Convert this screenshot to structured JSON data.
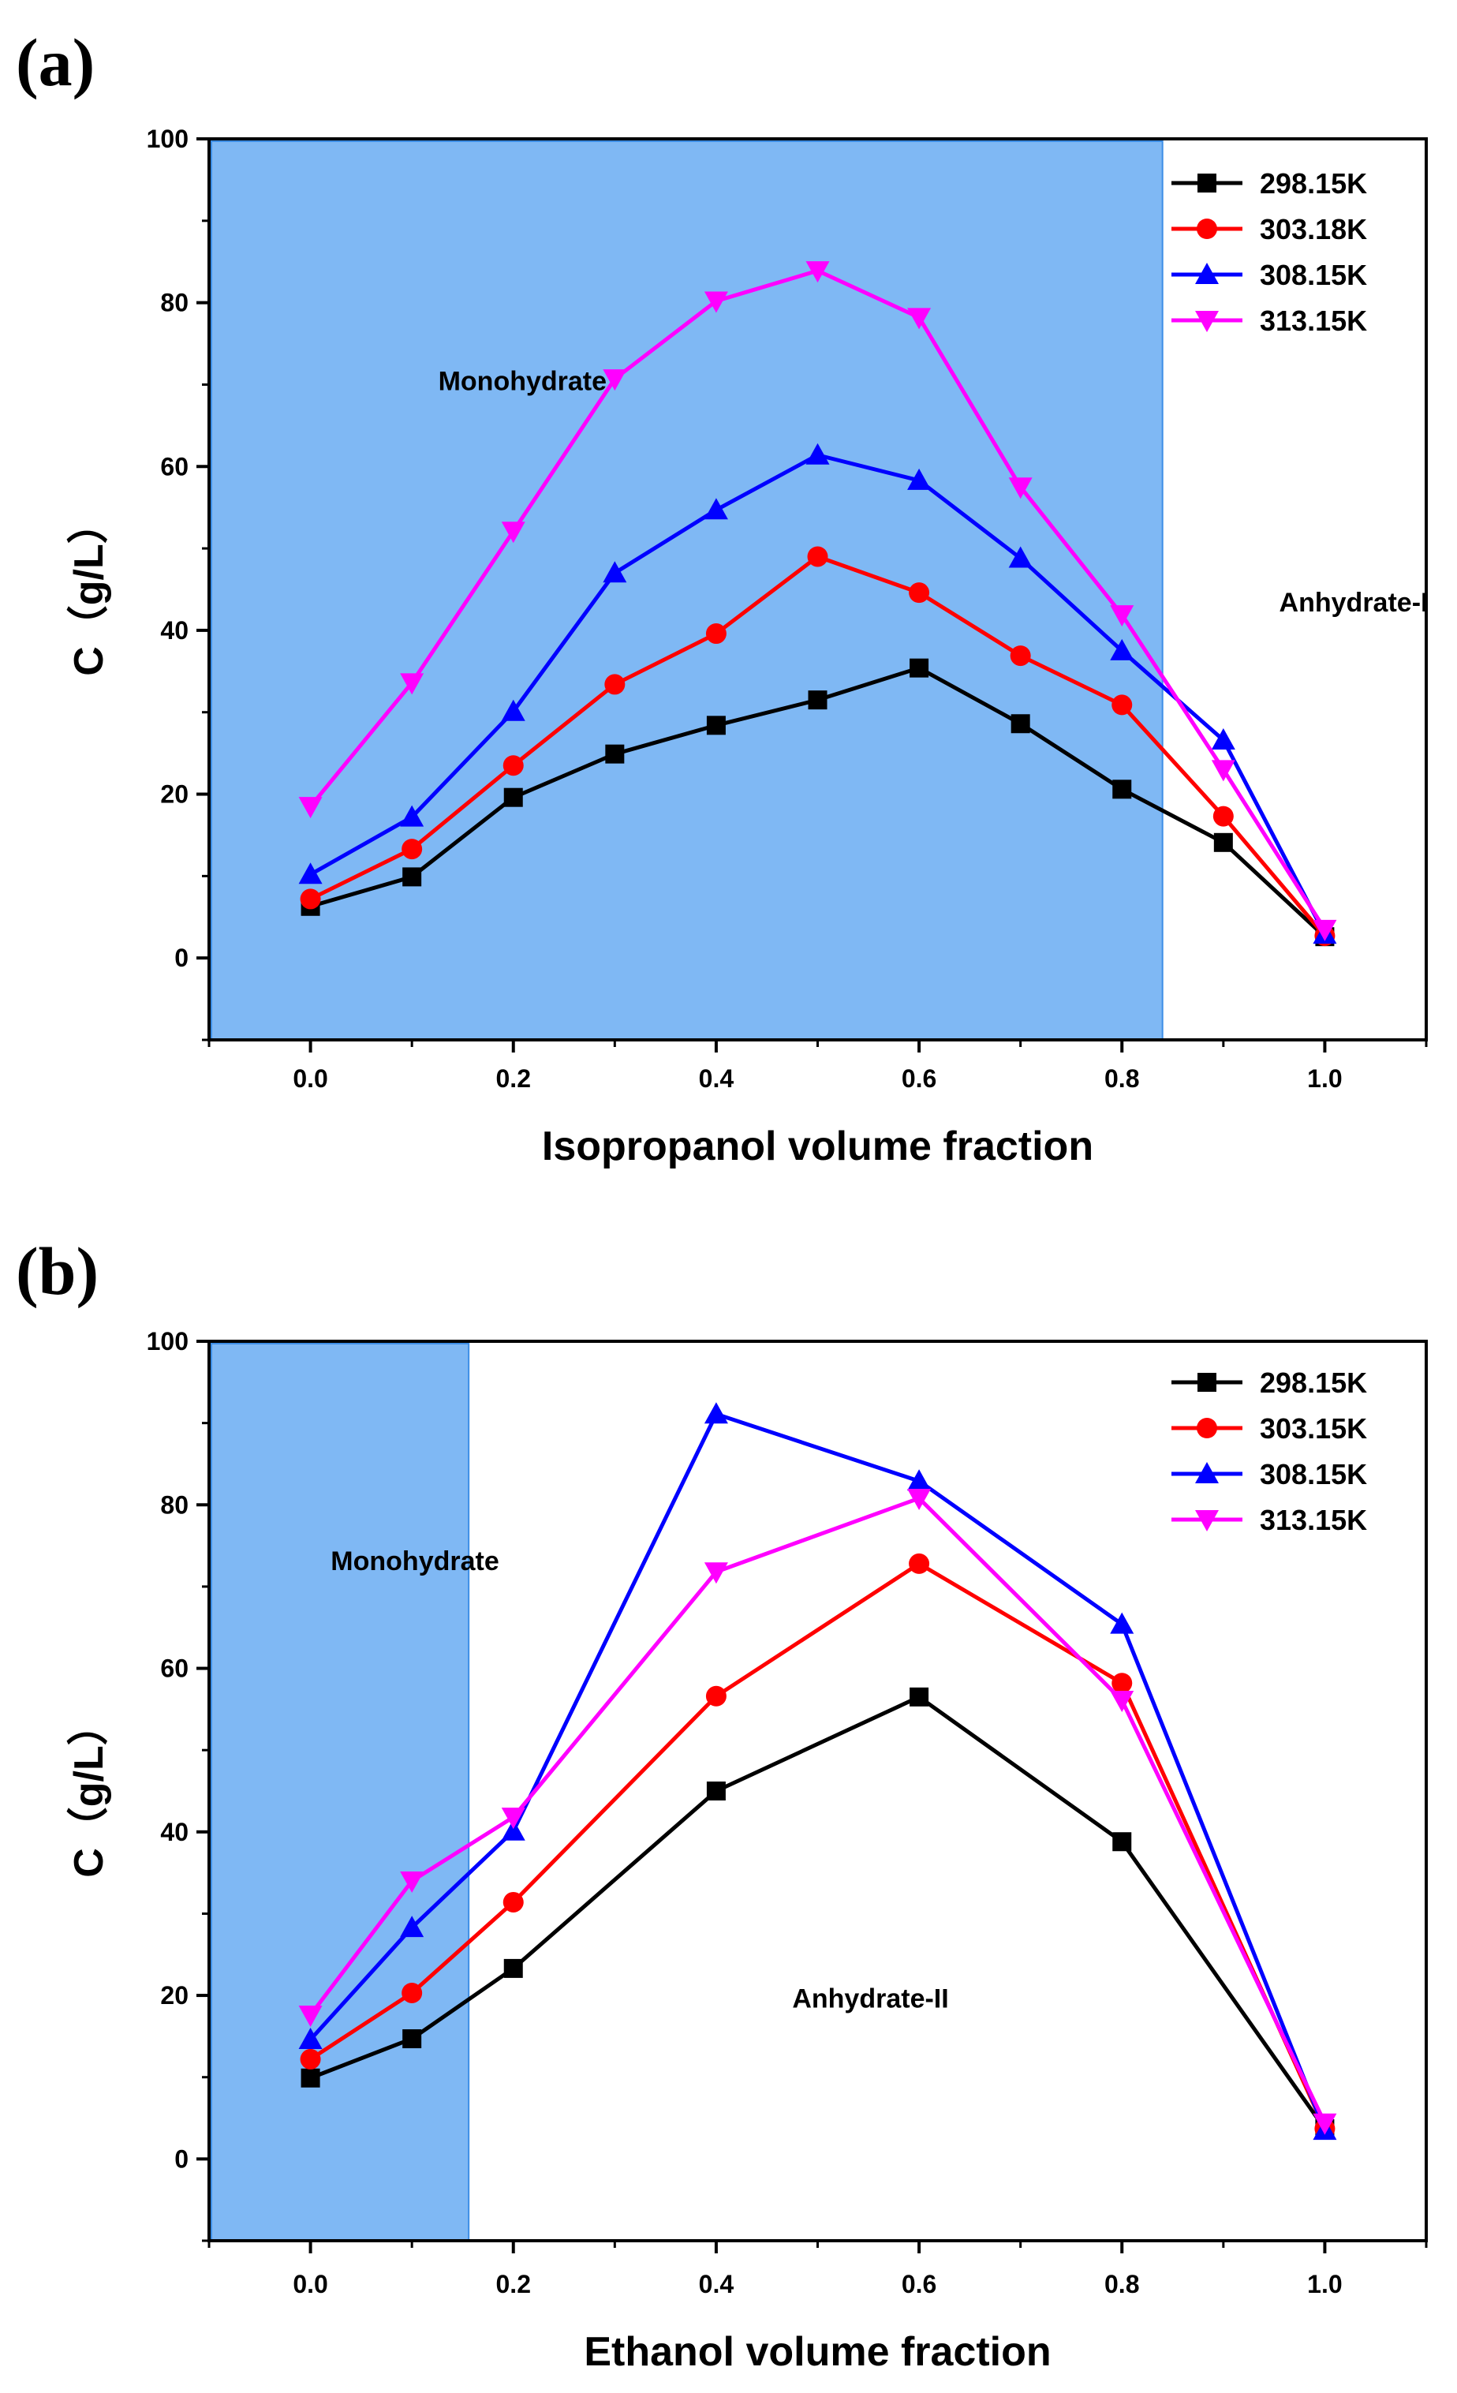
{
  "chart_data": [
    {
      "type": "line",
      "panel_label": "(a)",
      "xlabel": "Isopropanol volume fraction",
      "ylabel": "C（g/L）",
      "xlim": [
        -0.1,
        1.1
      ],
      "ylim": [
        -10,
        100
      ],
      "xticks": [
        "0.0",
        "0.2",
        "0.4",
        "0.6",
        "0.8",
        "1.0"
      ],
      "yticks": [
        "0",
        "20",
        "40",
        "60",
        "80",
        "100"
      ],
      "legend_position": "top-right",
      "shaded_region": {
        "x_from": -0.1,
        "x_to": 0.84,
        "color": "#7fb8f4"
      },
      "annotations": [
        {
          "text": "Monohydrate",
          "x": 0.126,
          "y": 69.3
        },
        {
          "text": "Anhydrate-I",
          "x": 0.955,
          "y": 42.3
        }
      ],
      "x": [
        0.0,
        0.1,
        0.2,
        0.3,
        0.4,
        0.5,
        0.6,
        0.7,
        0.8,
        0.9,
        1.0
      ],
      "series": [
        {
          "name": "298.15K",
          "color": "#000000",
          "marker": "square",
          "values": [
            6.3,
            9.9,
            19.6,
            24.9,
            28.4,
            31.5,
            35.4,
            28.6,
            20.6,
            14.1,
            2.6
          ]
        },
        {
          "name": "303.18K",
          "color": "#ff0000",
          "marker": "circle",
          "values": [
            7.2,
            13.3,
            23.5,
            33.4,
            39.6,
            49.0,
            44.6,
            36.9,
            30.9,
            17.3,
            2.7
          ]
        },
        {
          "name": "308.15K",
          "color": "#0000ff",
          "marker": "triangle-up",
          "values": [
            10.2,
            17.2,
            30.1,
            47.0,
            54.7,
            61.4,
            58.3,
            48.8,
            37.5,
            26.6,
            2.9
          ]
        },
        {
          "name": "313.15K",
          "color": "#ff00ff",
          "marker": "triangle-down",
          "values": [
            18.5,
            33.6,
            52.1,
            70.7,
            80.2,
            83.9,
            78.2,
            57.5,
            41.9,
            23.0,
            3.5
          ]
        }
      ]
    },
    {
      "type": "line",
      "panel_label": "(b)",
      "xlabel": "Ethanol volume fraction",
      "ylabel": "C（g/L）",
      "xlim": [
        -0.1,
        1.1
      ],
      "ylim": [
        -10,
        100
      ],
      "xticks": [
        "0.0",
        "0.2",
        "0.4",
        "0.6",
        "0.8",
        "1.0"
      ],
      "yticks": [
        "0",
        "20",
        "40",
        "60",
        "80",
        "100"
      ],
      "legend_position": "top-right",
      "shaded_region": {
        "x_from": -0.1,
        "x_to": 0.156,
        "color": "#7fb8f4"
      },
      "annotations": [
        {
          "text": "Monohydrate",
          "x": 0.02,
          "y": 72.0
        },
        {
          "text": "Anhydrate-II",
          "x": 0.475,
          "y": 18.5
        }
      ],
      "x": [
        0.0,
        0.1,
        0.2,
        0.4,
        0.6,
        0.8,
        1.0
      ],
      "series": [
        {
          "name": "298.15K",
          "color": "#000000",
          "marker": "square",
          "values": [
            9.9,
            14.7,
            23.3,
            45.0,
            56.5,
            38.8,
            3.7
          ]
        },
        {
          "name": "303.15K",
          "color": "#ff0000",
          "marker": "circle",
          "values": [
            12.2,
            20.3,
            31.4,
            56.6,
            72.8,
            58.2,
            3.7
          ]
        },
        {
          "name": "308.15K",
          "color": "#0000ff",
          "marker": "triangle-up",
          "values": [
            14.6,
            28.3,
            40.1,
            91.1,
            82.9,
            65.4,
            3.5
          ]
        },
        {
          "name": "313.15K",
          "color": "#ff00ff",
          "marker": "triangle-down",
          "values": [
            17.6,
            34.0,
            41.8,
            71.8,
            80.8,
            56.1,
            4.4
          ]
        }
      ]
    }
  ]
}
